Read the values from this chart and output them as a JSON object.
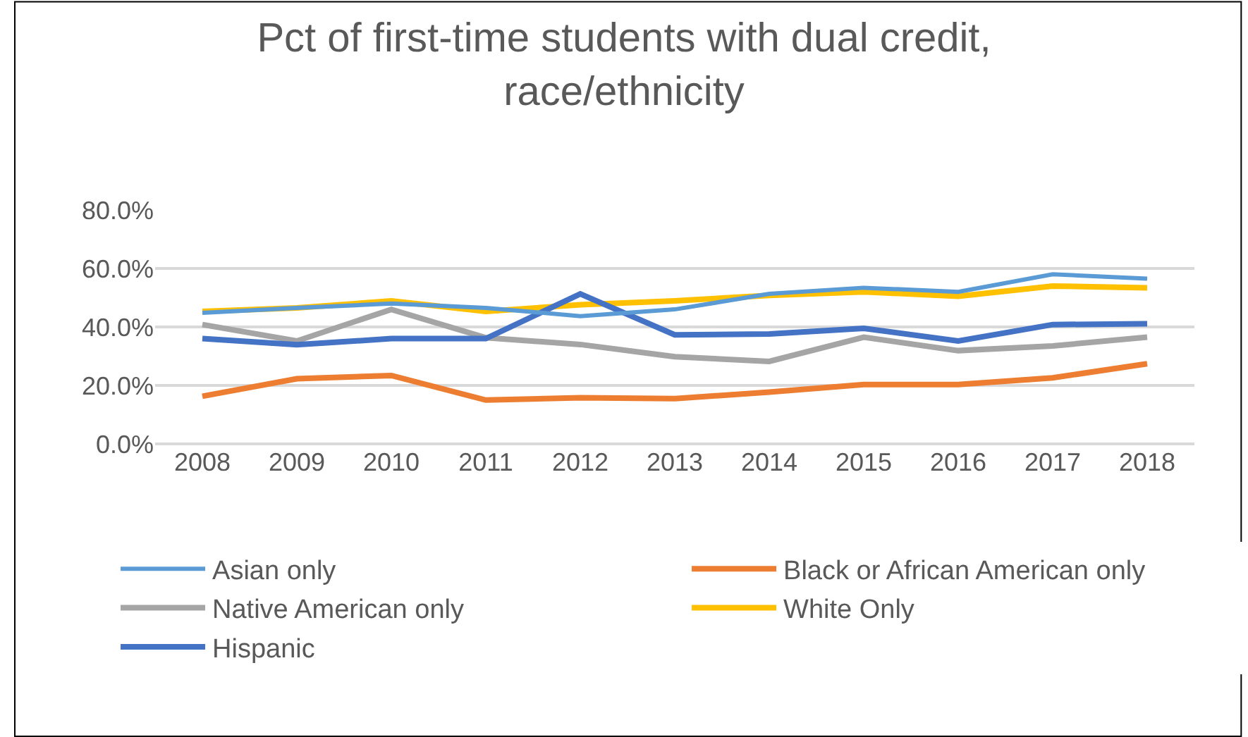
{
  "chart_data": {
    "type": "line",
    "title": "Pct of first-time students with dual credit, race/ethnicity",
    "categories": [
      "2008",
      "2009",
      "2010",
      "2011",
      "2012",
      "2013",
      "2014",
      "2015",
      "2016",
      "2017",
      "2018"
    ],
    "series": [
      {
        "name": "Asian only",
        "color": "#5b9bd5",
        "values": [
          44.8,
          46.5,
          48,
          46.5,
          43.7,
          46,
          51.3,
          53.4,
          52,
          58,
          56.5
        ]
      },
      {
        "name": "Black or African American only",
        "color": "#ed7d31",
        "values": [
          16.3,
          22.3,
          23.4,
          15,
          15.8,
          15.5,
          17.7,
          20.3,
          20.3,
          22.6,
          27.4
        ]
      },
      {
        "name": "Native American only",
        "color": "#a5a5a5",
        "values": [
          40.8,
          35.2,
          46,
          36.3,
          34,
          29.8,
          28.2,
          36.5,
          31.9,
          33.5,
          36.5
        ]
      },
      {
        "name": "White Only",
        "color": "#ffc000",
        "values": [
          45.3,
          46.5,
          48.9,
          45.3,
          47.6,
          48.9,
          50.8,
          52,
          50.5,
          54,
          53.4
        ]
      },
      {
        "name": "Hispanic",
        "color": "#4472c4",
        "values": [
          36,
          33.9,
          36,
          36,
          51.3,
          37.3,
          37.6,
          39.5,
          35.2,
          40.8,
          41.1
        ]
      }
    ],
    "ylim": [
      0,
      80
    ],
    "yticks": [
      {
        "value": 0,
        "label": "0.0%"
      },
      {
        "value": 20,
        "label": "20.0%"
      },
      {
        "value": 40,
        "label": "40.0%"
      },
      {
        "value": 60,
        "label": "60.0%"
      },
      {
        "value": 80,
        "label": "80.0%"
      }
    ],
    "grid": "y",
    "legend": "bottom",
    "marker": "none",
    "line_style": "solid"
  }
}
